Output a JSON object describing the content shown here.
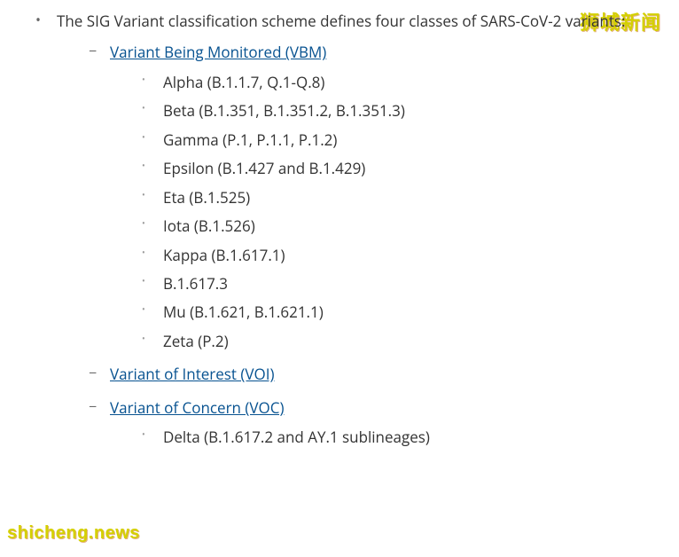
{
  "intro": "The SIG Variant classification scheme defines four classes of SARS-CoV-2 variants:",
  "sections": {
    "vbm": {
      "title": "Variant Being Monitored (VBM)",
      "items": [
        "Alpha (B.1.1.7, Q.1-Q.8)",
        "Beta (B.1.351, B.1.351.2, B.1.351.3)",
        "Gamma (P.1, P.1.1, P.1.2)",
        "Epsilon (B.1.427 and B.1.429)",
        "Eta (B.1.525)",
        "Iota (B.1.526)",
        "Kappa (B.1.617.1)",
        "B.1.617.3",
        "Mu (B.1.621, B.1.621.1)",
        "Zeta (P.2)"
      ]
    },
    "voi": {
      "title": "Variant of Interest (VOI)"
    },
    "voc": {
      "title": "Variant of Concern (VOC)",
      "items": [
        "Delta (B.1.617.2 and AY.1 sublineages)"
      ]
    }
  },
  "watermarks": {
    "top": "狮城新闻",
    "bottom": "shicheng.news"
  },
  "colors": {
    "text": "#333333",
    "link": "#075290",
    "bullet_l1": "#666666",
    "bullet_l3": "#999999",
    "watermark": "#d4d000",
    "background": "#ffffff"
  },
  "typography": {
    "body_fontsize": 17,
    "line_height": 1.85,
    "watermark_top_fontsize": 22,
    "watermark_bottom_fontsize": 20
  }
}
